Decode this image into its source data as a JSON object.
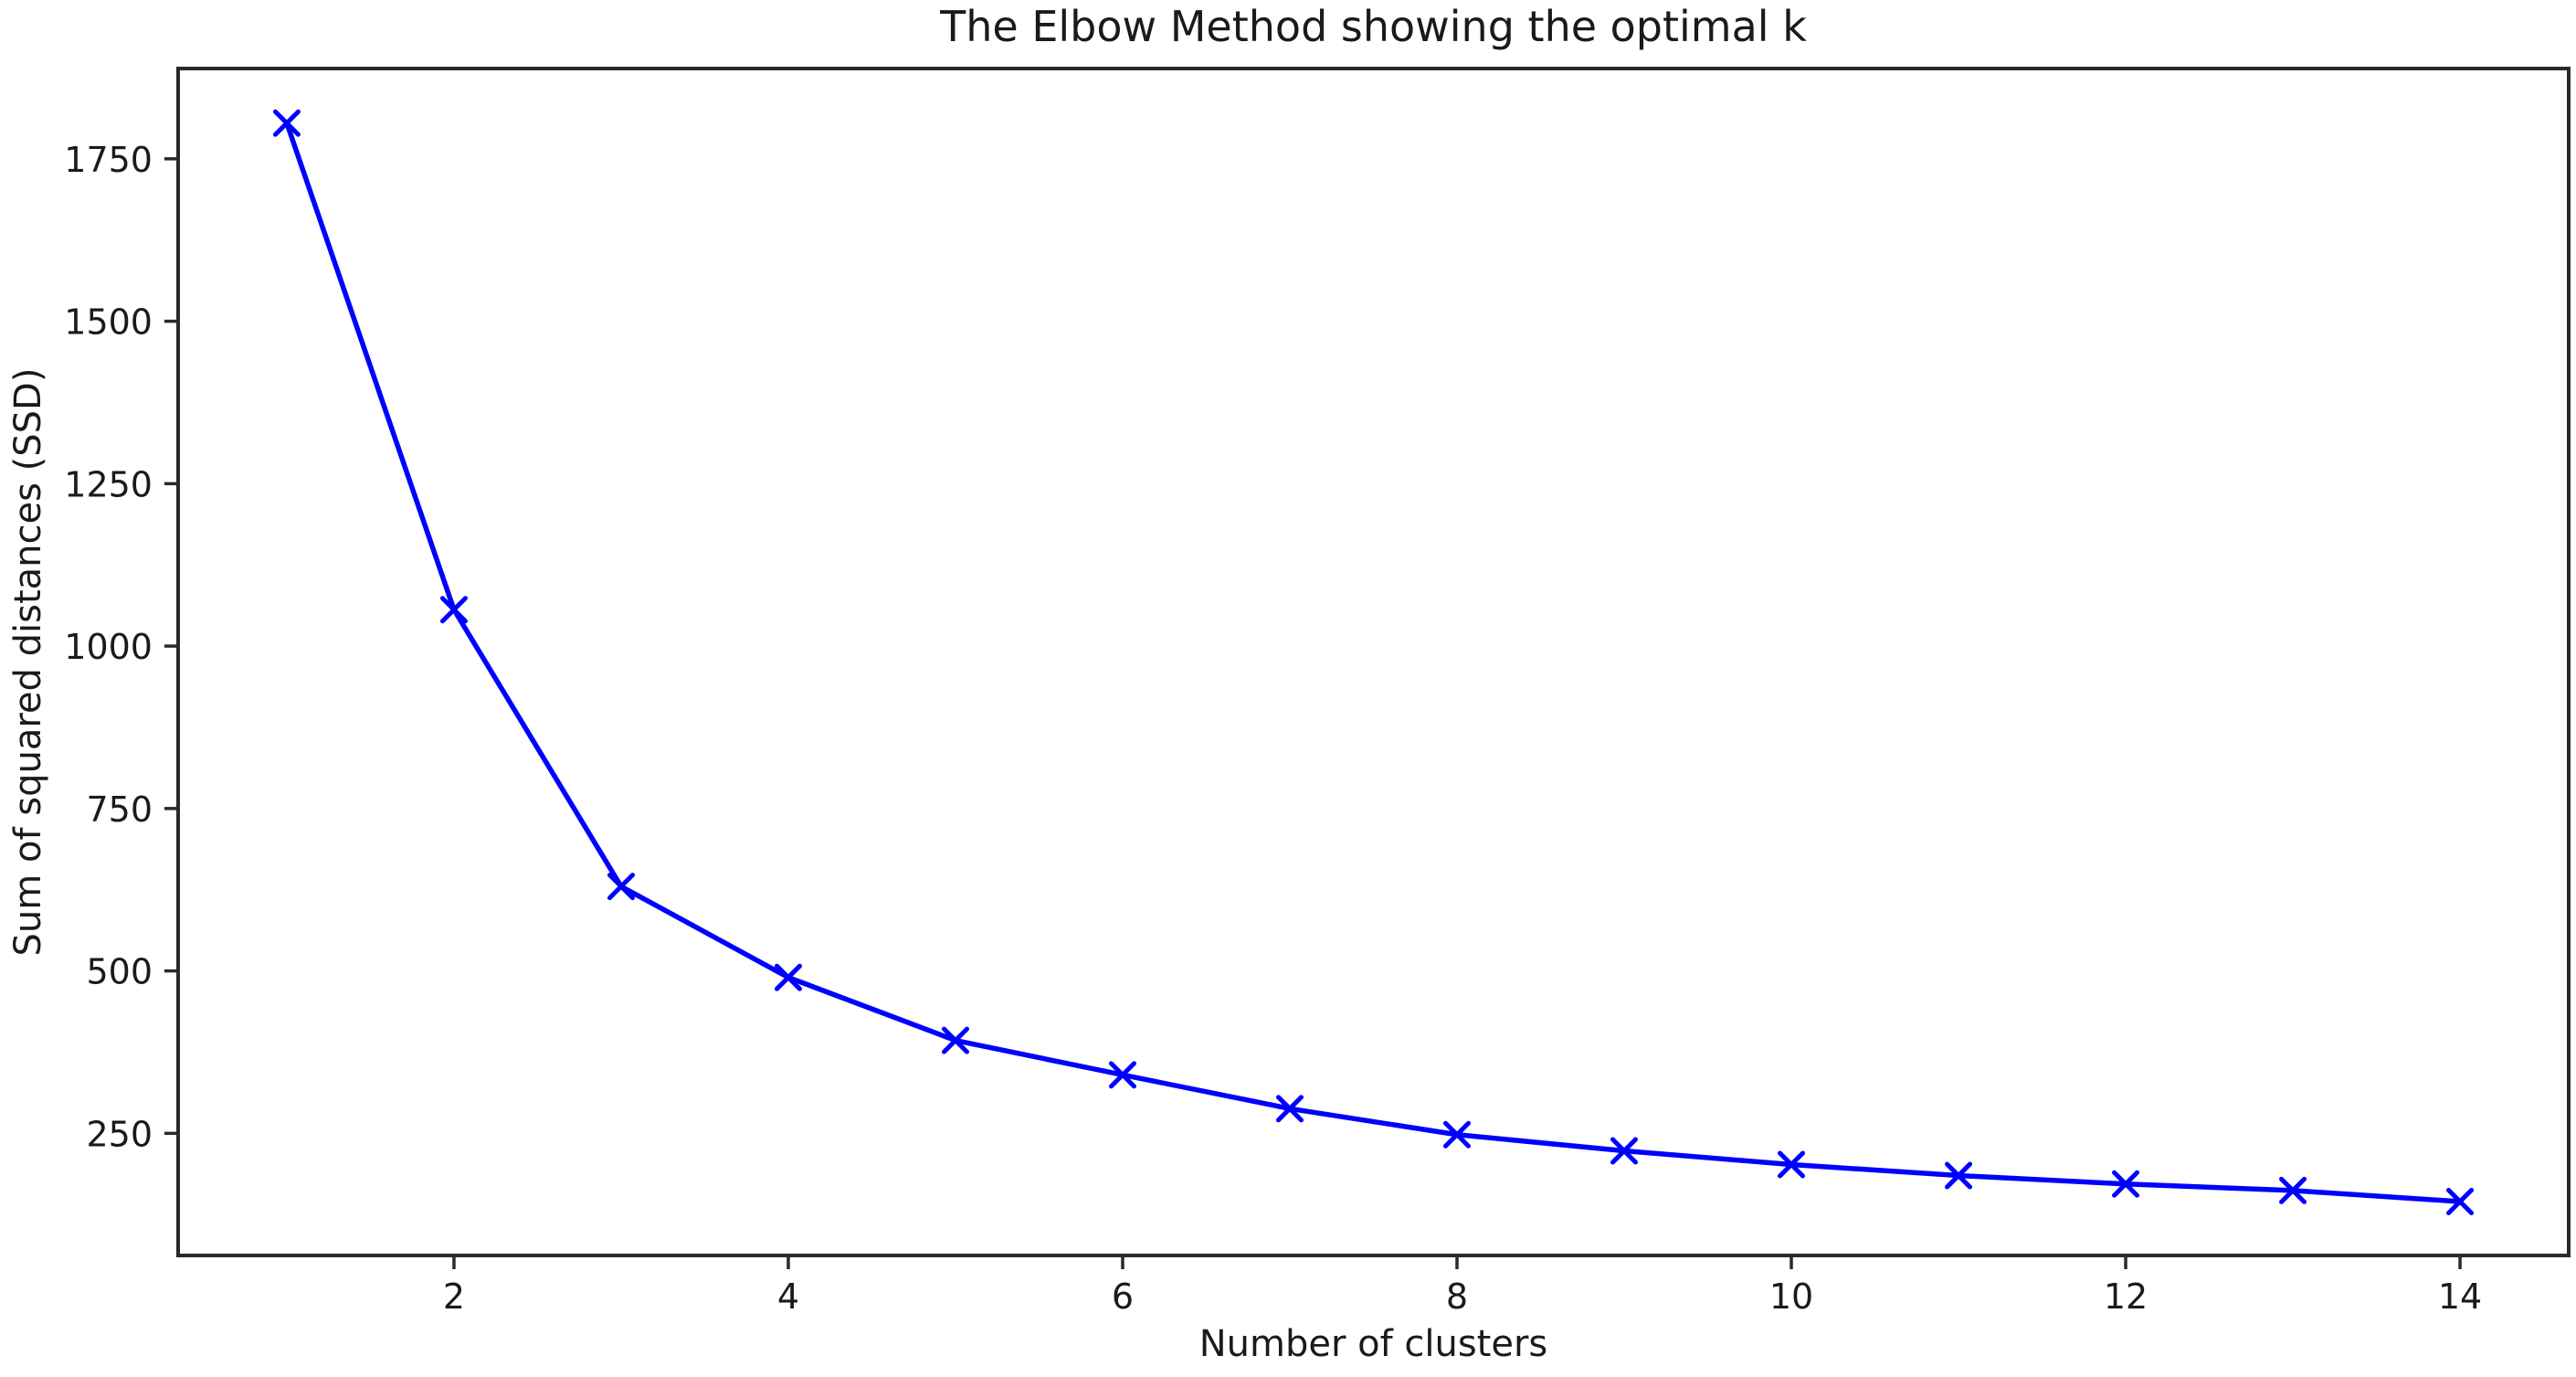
{
  "chart_data": {
    "type": "line",
    "title": "The Elbow Method showing the optimal k",
    "xlabel": "Number of clusters",
    "ylabel": "Sum of squared distances (SSD)",
    "series": [
      {
        "name": "SSD",
        "x": [
          1,
          2,
          3,
          4,
          5,
          6,
          7,
          8,
          9,
          10,
          11,
          12,
          13,
          14
        ],
        "y": [
          1805,
          1056,
          630,
          490,
          393,
          340,
          288,
          248,
          223,
          202,
          185,
          172,
          162,
          145
        ],
        "marker": "x",
        "color": "#0000ff"
      }
    ],
    "xticks": [
      2,
      4,
      6,
      8,
      10,
      12,
      14
    ],
    "yticks": [
      250,
      500,
      750,
      1000,
      1250,
      1500,
      1750
    ],
    "xlim": [
      0.35,
      14.65
    ],
    "ylim": [
      62,
      1889
    ],
    "grid": false,
    "legend_position": "none",
    "colors": {
      "line": "#0000ff",
      "text": "#1a1a1a",
      "spine": "#2a2a2a",
      "background": "#ffffff"
    }
  }
}
